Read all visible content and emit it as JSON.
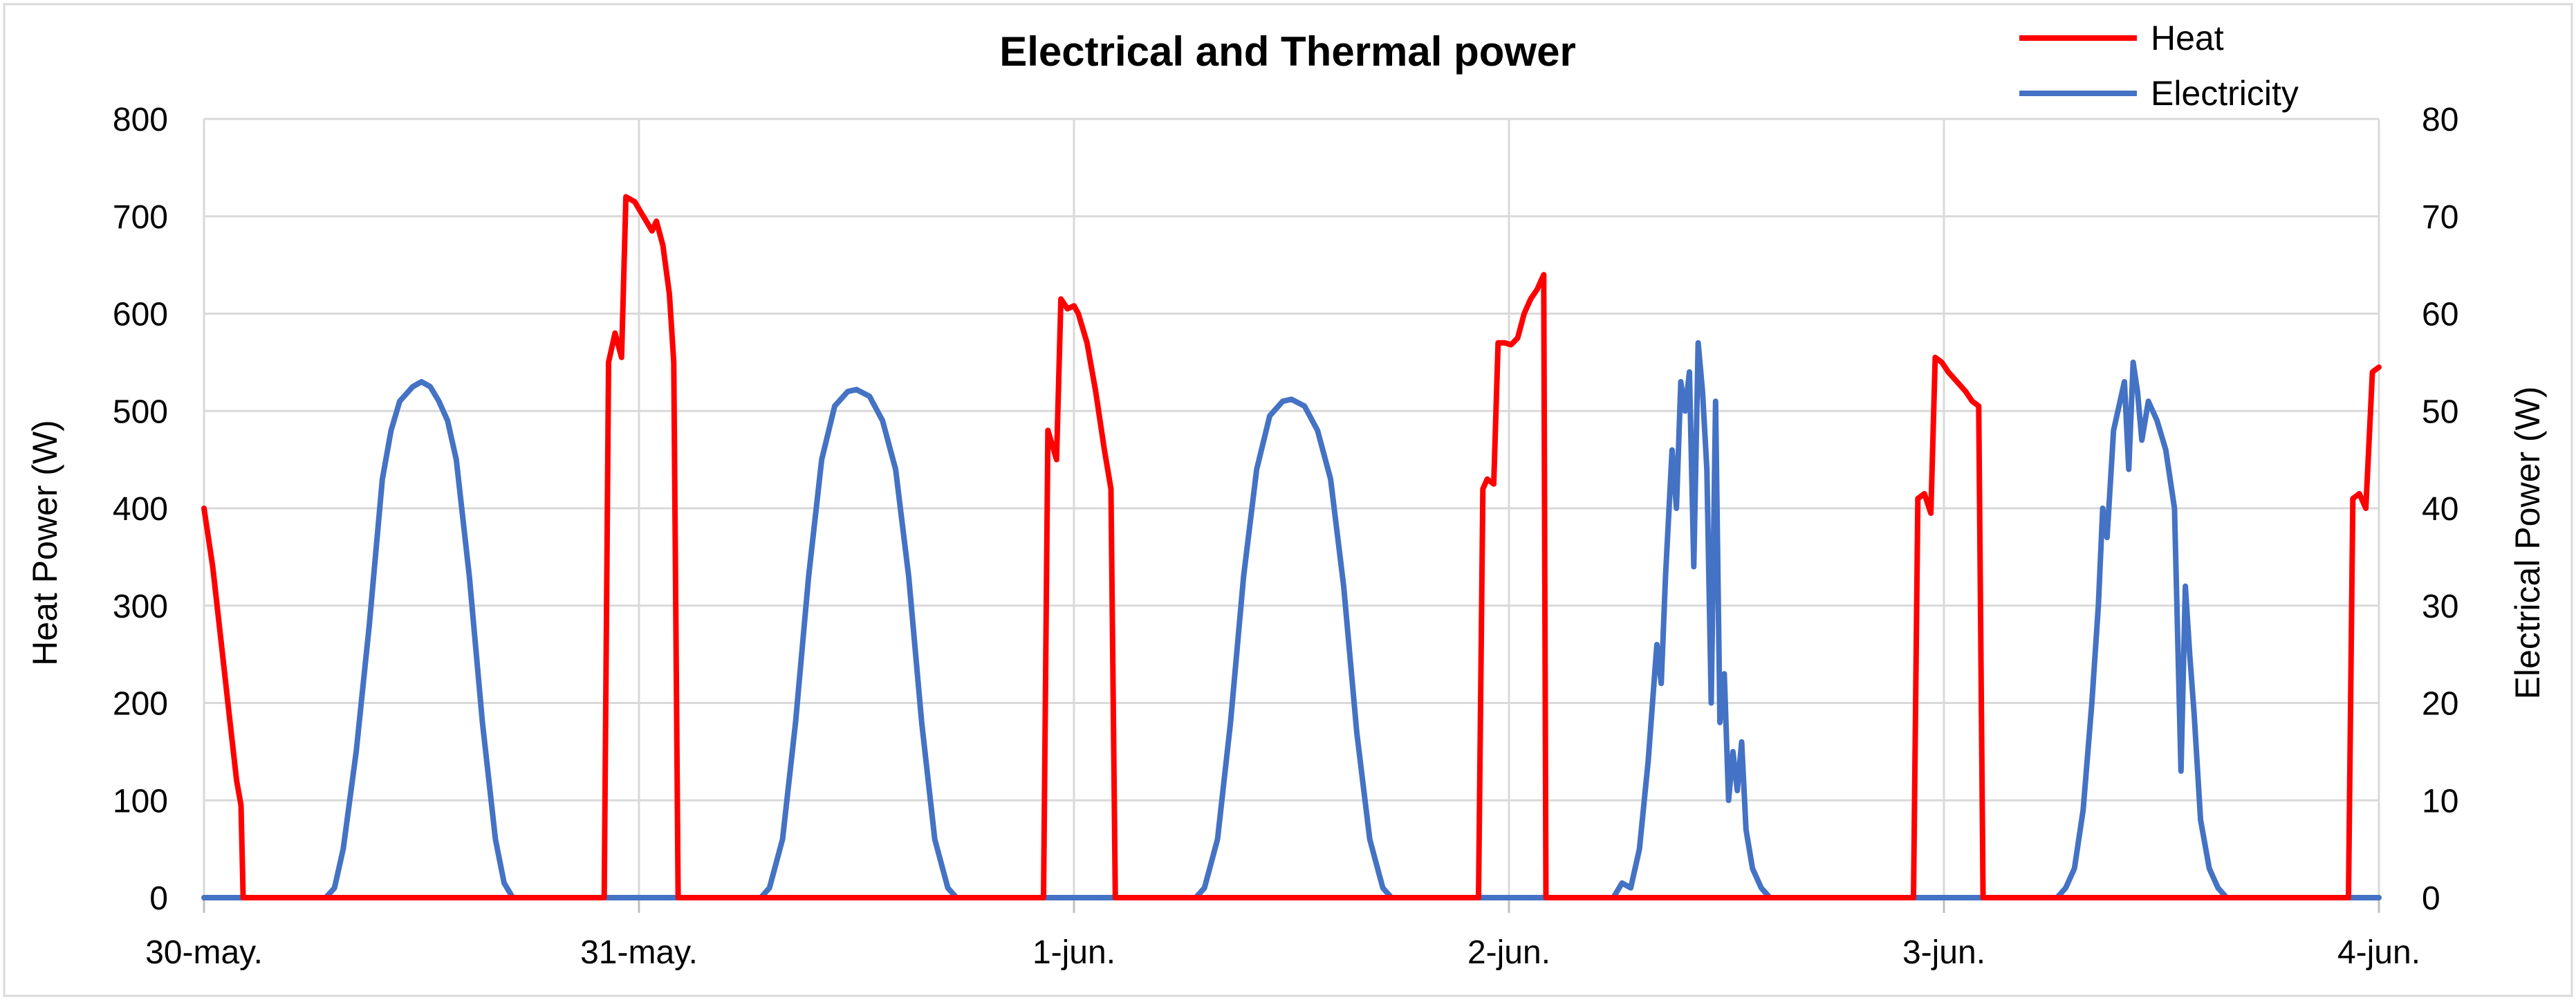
{
  "chart_data": {
    "type": "line",
    "title": "Electrical and Thermal power",
    "ylabel": "Heat Power (W)",
    "y2label": "Electrical Power (W)",
    "ylim": [
      0,
      800
    ],
    "y2lim": [
      0,
      80
    ],
    "yticks": [
      0,
      100,
      200,
      300,
      400,
      500,
      600,
      700,
      800
    ],
    "y2ticks": [
      0,
      10,
      20,
      30,
      40,
      50,
      60,
      70,
      80
    ],
    "xlim": [
      0,
      5
    ],
    "xticks": [
      {
        "x": 0,
        "label": "30-may."
      },
      {
        "x": 1,
        "label": "31-may."
      },
      {
        "x": 2,
        "label": "1-jun."
      },
      {
        "x": 3,
        "label": "2-jun."
      },
      {
        "x": 4,
        "label": "3-jun."
      },
      {
        "x": 5,
        "label": "4-jun."
      }
    ],
    "grid": true,
    "legend_position": "top-right",
    "colors": {
      "heat": "#ff0000",
      "electricity": "#4472c4",
      "grid": "#d9d9d9",
      "axis": "#bfbfbf"
    },
    "series": [
      {
        "name": "Heat",
        "axis": "left",
        "points": [
          [
            0,
            400
          ],
          [
            0.02,
            340
          ],
          [
            0.04,
            260
          ],
          [
            0.06,
            180
          ],
          [
            0.075,
            120
          ],
          [
            0.085,
            95
          ],
          [
            0.09,
            0
          ],
          [
            0.92,
            0
          ],
          [
            0.93,
            550
          ],
          [
            0.945,
            580
          ],
          [
            0.96,
            555
          ],
          [
            0.97,
            720
          ],
          [
            0.99,
            715
          ],
          [
            1.01,
            700
          ],
          [
            1.03,
            685
          ],
          [
            1.04,
            695
          ],
          [
            1.055,
            670
          ],
          [
            1.07,
            620
          ],
          [
            1.08,
            550
          ],
          [
            1.09,
            0
          ],
          [
            1.93,
            0
          ],
          [
            1.94,
            480
          ],
          [
            1.96,
            450
          ],
          [
            1.97,
            615
          ],
          [
            1.985,
            605
          ],
          [
            2.0,
            608
          ],
          [
            2.01,
            600
          ],
          [
            2.03,
            570
          ],
          [
            2.05,
            520
          ],
          [
            2.07,
            460
          ],
          [
            2.085,
            420
          ],
          [
            2.095,
            0
          ],
          [
            2.93,
            0
          ],
          [
            2.94,
            420
          ],
          [
            2.95,
            430
          ],
          [
            2.965,
            425
          ],
          [
            2.975,
            570
          ],
          [
            2.99,
            570
          ],
          [
            3.005,
            568
          ],
          [
            3.02,
            575
          ],
          [
            3.035,
            600
          ],
          [
            3.05,
            615
          ],
          [
            3.065,
            625
          ],
          [
            3.08,
            640
          ],
          [
            3.085,
            0
          ],
          [
            3.93,
            0
          ],
          [
            3.94,
            410
          ],
          [
            3.955,
            415
          ],
          [
            3.97,
            395
          ],
          [
            3.98,
            555
          ],
          [
            3.995,
            550
          ],
          [
            4.01,
            540
          ],
          [
            4.03,
            530
          ],
          [
            4.05,
            520
          ],
          [
            4.065,
            510
          ],
          [
            4.08,
            505
          ],
          [
            4.09,
            0
          ],
          [
            4.93,
            0
          ],
          [
            4.94,
            410
          ],
          [
            4.955,
            415
          ],
          [
            4.97,
            400
          ],
          [
            4.985,
            540
          ],
          [
            5.0,
            545
          ]
        ]
      },
      {
        "name": "Electricity",
        "axis": "right",
        "points": [
          [
            0,
            0
          ],
          [
            0.28,
            0
          ],
          [
            0.3,
            1
          ],
          [
            0.32,
            5
          ],
          [
            0.35,
            15
          ],
          [
            0.38,
            28
          ],
          [
            0.41,
            43
          ],
          [
            0.43,
            48
          ],
          [
            0.45,
            51
          ],
          [
            0.48,
            52.5
          ],
          [
            0.5,
            53
          ],
          [
            0.52,
            52.5
          ],
          [
            0.54,
            51
          ],
          [
            0.56,
            49
          ],
          [
            0.58,
            45
          ],
          [
            0.61,
            33
          ],
          [
            0.64,
            18
          ],
          [
            0.67,
            6
          ],
          [
            0.69,
            1.5
          ],
          [
            0.71,
            0
          ],
          [
            1.28,
            0
          ],
          [
            1.3,
            1
          ],
          [
            1.33,
            6
          ],
          [
            1.36,
            18
          ],
          [
            1.39,
            33
          ],
          [
            1.42,
            45
          ],
          [
            1.45,
            50.5
          ],
          [
            1.48,
            52
          ],
          [
            1.5,
            52.2
          ],
          [
            1.53,
            51.5
          ],
          [
            1.56,
            49
          ],
          [
            1.59,
            44
          ],
          [
            1.62,
            33
          ],
          [
            1.65,
            18
          ],
          [
            1.68,
            6
          ],
          [
            1.71,
            1
          ],
          [
            1.73,
            0
          ],
          [
            2.28,
            0
          ],
          [
            2.3,
            1
          ],
          [
            2.33,
            6
          ],
          [
            2.36,
            18
          ],
          [
            2.39,
            33
          ],
          [
            2.42,
            44
          ],
          [
            2.45,
            49.5
          ],
          [
            2.48,
            51
          ],
          [
            2.5,
            51.2
          ],
          [
            2.53,
            50.5
          ],
          [
            2.56,
            48
          ],
          [
            2.59,
            43
          ],
          [
            2.62,
            32
          ],
          [
            2.65,
            17
          ],
          [
            2.68,
            6
          ],
          [
            2.71,
            1
          ],
          [
            2.73,
            0
          ],
          [
            3.24,
            0
          ],
          [
            3.26,
            1.5
          ],
          [
            3.28,
            1
          ],
          [
            3.3,
            5
          ],
          [
            3.32,
            14
          ],
          [
            3.34,
            26
          ],
          [
            3.35,
            22
          ],
          [
            3.36,
            33
          ],
          [
            3.375,
            46
          ],
          [
            3.385,
            40
          ],
          [
            3.395,
            53
          ],
          [
            3.405,
            50
          ],
          [
            3.415,
            54
          ],
          [
            3.425,
            34
          ],
          [
            3.435,
            57
          ],
          [
            3.445,
            52
          ],
          [
            3.455,
            44
          ],
          [
            3.465,
            20
          ],
          [
            3.475,
            51
          ],
          [
            3.485,
            18
          ],
          [
            3.495,
            23
          ],
          [
            3.505,
            10
          ],
          [
            3.515,
            15
          ],
          [
            3.525,
            11
          ],
          [
            3.535,
            16
          ],
          [
            3.545,
            7
          ],
          [
            3.56,
            3
          ],
          [
            3.58,
            1
          ],
          [
            3.6,
            0
          ],
          [
            4.26,
            0
          ],
          [
            4.28,
            1
          ],
          [
            4.3,
            3
          ],
          [
            4.32,
            9
          ],
          [
            4.34,
            20
          ],
          [
            4.355,
            30
          ],
          [
            4.365,
            40
          ],
          [
            4.375,
            37
          ],
          [
            4.39,
            48
          ],
          [
            4.405,
            51
          ],
          [
            4.415,
            53
          ],
          [
            4.425,
            44
          ],
          [
            4.435,
            55
          ],
          [
            4.445,
            52
          ],
          [
            4.455,
            47
          ],
          [
            4.47,
            51
          ],
          [
            4.49,
            49
          ],
          [
            4.51,
            46
          ],
          [
            4.53,
            40
          ],
          [
            4.545,
            13
          ],
          [
            4.555,
            32
          ],
          [
            4.565,
            25
          ],
          [
            4.575,
            19
          ],
          [
            4.59,
            8
          ],
          [
            4.61,
            3
          ],
          [
            4.63,
            1
          ],
          [
            4.65,
            0
          ],
          [
            5.0,
            0
          ]
        ]
      }
    ]
  }
}
